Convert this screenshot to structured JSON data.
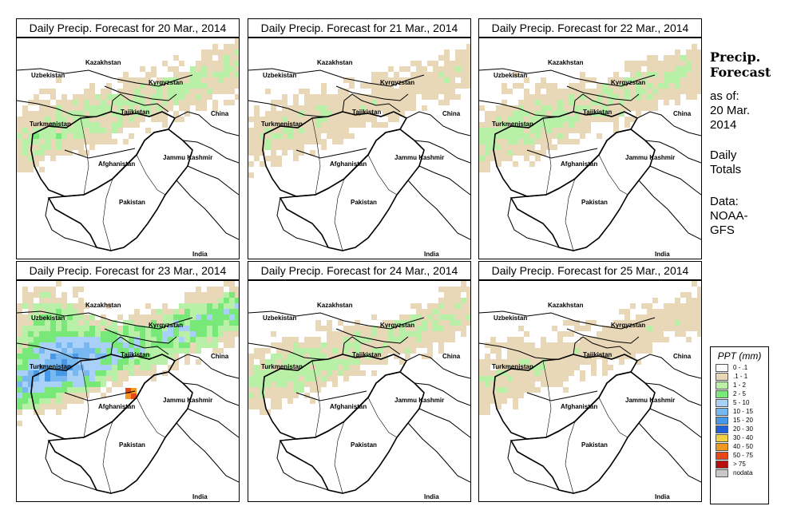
{
  "panels": [
    {
      "title": "Daily Precip. Forecast for  20 Mar., 2014",
      "intensity": 2
    },
    {
      "title": "Daily Precip. Forecast for  21 Mar., 2014",
      "intensity": 1
    },
    {
      "title": "Daily Precip. Forecast for  22 Mar., 2014",
      "intensity": 2
    },
    {
      "title": "Daily Precip. Forecast for  23 Mar., 2014",
      "intensity": 4
    },
    {
      "title": "Daily Precip. Forecast for  24 Mar., 2014",
      "intensity": 2
    },
    {
      "title": "Daily Precip. Forecast for  25 Mar., 2014",
      "intensity": 1
    }
  ],
  "map_labels": {
    "kazakhstan": "Kazakhstan",
    "uzbekistan": "Uzbekistan",
    "kyrgyzstan": "Kyrgyzstan",
    "tajikistan": "Tajikistan",
    "china": "China",
    "turkmenistan": "Turkmenistan",
    "afghanistan": "Afghanistan",
    "jammu_kashmir": "Jammu Kashmir",
    "pakistan": "Pakistan",
    "india": "India"
  },
  "sidebar": {
    "title_line1": "Precip.",
    "title_line2": "Forecast",
    "asof": "as of:",
    "date_line1": "20 Mar.",
    "date_line2": "2014",
    "totals_line1": "Daily",
    "totals_line2": "Totals",
    "data_line1": "Data:",
    "data_line2": "NOAA-",
    "data_line3": "GFS"
  },
  "legend": {
    "title": "PPT (mm)",
    "items": [
      {
        "label": "0 - .1",
        "color": "#ffffff"
      },
      {
        "label": ".1 - 1",
        "color": "#e8d8b8"
      },
      {
        "label": "1 - 2",
        "color": "#b8f0a8"
      },
      {
        "label": "2 - 5",
        "color": "#78e878"
      },
      {
        "label": "5 - 10",
        "color": "#a8d0f8"
      },
      {
        "label": "10 - 15",
        "color": "#78b8f0"
      },
      {
        "label": "15 - 20",
        "color": "#4898e8"
      },
      {
        "label": "20 - 30",
        "color": "#2060d8"
      },
      {
        "label": "30 - 40",
        "color": "#f0d040"
      },
      {
        "label": "40 - 50",
        "color": "#f09820"
      },
      {
        "label": "50 - 75",
        "color": "#e84818"
      },
      {
        "label": "> 75",
        "color": "#b81010"
      },
      {
        "label": "nodata",
        "color": "#c8c8c8"
      }
    ]
  }
}
